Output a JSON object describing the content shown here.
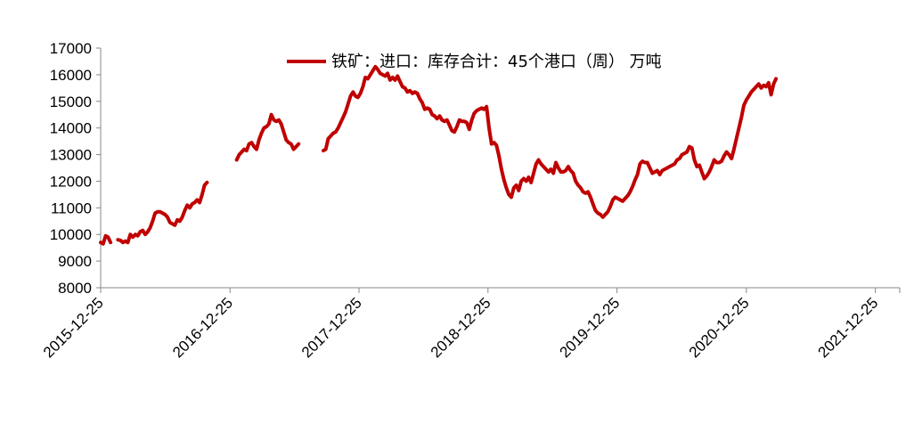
{
  "chart_data": {
    "type": "line",
    "title": "",
    "xlabel": "",
    "ylabel": "",
    "ylim": [
      8000,
      17000
    ],
    "y_ticks": [
      "8000",
      "9000",
      "10000",
      "11000",
      "12000",
      "13000",
      "14000",
      "15000",
      "16000",
      "17000"
    ],
    "x_ticks": [
      "2015-12-25",
      "2016-12-25",
      "2017-12-25",
      "2018-12-25",
      "2019-12-25",
      "2020-12-25",
      "2021-12-25"
    ],
    "x_range": [
      "2015-12-25",
      "2022-03-04"
    ],
    "grid": false,
    "legend_position": "top-center",
    "series": [
      {
        "name": "铁矿：进口：库存合计：45个港口（周） 万吨",
        "color": "#C00000",
        "points": [
          [
            "2015-12-25",
            9700
          ],
          [
            "2016-01-01",
            9650
          ],
          [
            "2016-01-08",
            9950
          ],
          [
            "2016-01-15",
            9900
          ],
          [
            "2016-01-22",
            9700
          ],
          [
            "2016-02-05",
            null
          ],
          [
            "2016-02-12",
            9800
          ],
          [
            "2016-02-19",
            9780
          ],
          [
            "2016-02-26",
            9700
          ],
          [
            "2016-03-04",
            9750
          ],
          [
            "2016-03-11",
            9700
          ],
          [
            "2016-03-18",
            10000
          ],
          [
            "2016-03-25",
            9900
          ],
          [
            "2016-04-01",
            10000
          ],
          [
            "2016-04-08",
            9950
          ],
          [
            "2016-04-15",
            10100
          ],
          [
            "2016-04-22",
            10150
          ],
          [
            "2016-04-29",
            10000
          ],
          [
            "2016-05-06",
            10100
          ],
          [
            "2016-05-13",
            10250
          ],
          [
            "2016-05-20",
            10500
          ],
          [
            "2016-05-27",
            10800
          ],
          [
            "2016-06-03",
            10850
          ],
          [
            "2016-06-10",
            10850
          ],
          [
            "2016-06-17",
            10800
          ],
          [
            "2016-06-24",
            10750
          ],
          [
            "2016-07-01",
            10650
          ],
          [
            "2016-07-08",
            10450
          ],
          [
            "2016-07-15",
            10400
          ],
          [
            "2016-07-22",
            10350
          ],
          [
            "2016-07-29",
            10550
          ],
          [
            "2016-08-05",
            10500
          ],
          [
            "2016-08-12",
            10650
          ],
          [
            "2016-08-19",
            10900
          ],
          [
            "2016-08-26",
            11100
          ],
          [
            "2016-09-02",
            11000
          ],
          [
            "2016-09-09",
            11150
          ],
          [
            "2016-09-16",
            11200
          ],
          [
            "2016-09-23",
            11300
          ],
          [
            "2016-09-30",
            11200
          ],
          [
            "2016-10-07",
            11500
          ],
          [
            "2016-10-14",
            11850
          ],
          [
            "2016-10-21",
            11950
          ],
          [
            "2016-11-18",
            null
          ],
          [
            "2017-01-13",
            12800
          ],
          [
            "2017-01-20",
            13000
          ],
          [
            "2017-01-27",
            13100
          ],
          [
            "2017-02-03",
            13200
          ],
          [
            "2017-02-10",
            13150
          ],
          [
            "2017-02-17",
            13400
          ],
          [
            "2017-02-24",
            13450
          ],
          [
            "2017-03-03",
            13300
          ],
          [
            "2017-03-10",
            13200
          ],
          [
            "2017-03-17",
            13550
          ],
          [
            "2017-03-24",
            13800
          ],
          [
            "2017-03-31",
            14000
          ],
          [
            "2017-04-07",
            14050
          ],
          [
            "2017-04-14",
            14150
          ],
          [
            "2017-04-21",
            14500
          ],
          [
            "2017-04-28",
            14300
          ],
          [
            "2017-05-05",
            14250
          ],
          [
            "2017-05-12",
            14300
          ],
          [
            "2017-05-19",
            14150
          ],
          [
            "2017-05-26",
            13850
          ],
          [
            "2017-06-02",
            13550
          ],
          [
            "2017-06-09",
            13450
          ],
          [
            "2017-06-16",
            13400
          ],
          [
            "2017-06-23",
            13200
          ],
          [
            "2017-06-30",
            13300
          ],
          [
            "2017-07-07",
            13400
          ],
          [
            "2017-07-14",
            null
          ],
          [
            "2017-09-15",
            13150
          ],
          [
            "2017-09-22",
            13200
          ],
          [
            "2017-09-29",
            13600
          ],
          [
            "2017-10-06",
            13700
          ],
          [
            "2017-10-13",
            13800
          ],
          [
            "2017-10-20",
            13850
          ],
          [
            "2017-10-27",
            14000
          ],
          [
            "2017-11-03",
            14200
          ],
          [
            "2017-11-10",
            14400
          ],
          [
            "2017-11-17",
            14600
          ],
          [
            "2017-11-24",
            14900
          ],
          [
            "2017-12-01",
            15200
          ],
          [
            "2017-12-08",
            15350
          ],
          [
            "2017-12-15",
            15200
          ],
          [
            "2017-12-22",
            15150
          ],
          [
            "2017-12-29",
            15300
          ],
          [
            "2018-01-05",
            15550
          ],
          [
            "2018-01-12",
            15900
          ],
          [
            "2018-01-19",
            15850
          ],
          [
            "2018-01-26",
            16000
          ],
          [
            "2018-02-02",
            16150
          ],
          [
            "2018-02-09",
            16300
          ],
          [
            "2018-02-16",
            16200
          ],
          [
            "2018-02-23",
            16050
          ],
          [
            "2018-03-02",
            16000
          ],
          [
            "2018-03-09",
            15950
          ],
          [
            "2018-03-16",
            16050
          ],
          [
            "2018-03-23",
            15800
          ],
          [
            "2018-03-30",
            15900
          ],
          [
            "2018-04-06",
            15800
          ],
          [
            "2018-04-13",
            15950
          ],
          [
            "2018-04-20",
            15750
          ],
          [
            "2018-04-27",
            15550
          ],
          [
            "2018-05-04",
            15500
          ],
          [
            "2018-05-11",
            15350
          ],
          [
            "2018-05-18",
            15400
          ],
          [
            "2018-05-25",
            15300
          ],
          [
            "2018-06-01",
            15350
          ],
          [
            "2018-06-08",
            15300
          ],
          [
            "2018-06-15",
            15100
          ],
          [
            "2018-06-22",
            14950
          ],
          [
            "2018-06-29",
            14700
          ],
          [
            "2018-07-06",
            14750
          ],
          [
            "2018-07-13",
            14700
          ],
          [
            "2018-07-20",
            14500
          ],
          [
            "2018-07-27",
            14450
          ],
          [
            "2018-08-03",
            14350
          ],
          [
            "2018-08-10",
            14450
          ],
          [
            "2018-08-17",
            14300
          ],
          [
            "2018-08-24",
            14250
          ],
          [
            "2018-08-31",
            14300
          ],
          [
            "2018-09-07",
            14100
          ],
          [
            "2018-09-14",
            13900
          ],
          [
            "2018-09-21",
            13850
          ],
          [
            "2018-09-28",
            14050
          ],
          [
            "2018-10-05",
            14300
          ],
          [
            "2018-10-12",
            14250
          ],
          [
            "2018-10-19",
            14250
          ],
          [
            "2018-10-26",
            14200
          ],
          [
            "2018-11-02",
            13950
          ],
          [
            "2018-11-09",
            14300
          ],
          [
            "2018-11-16",
            14550
          ],
          [
            "2018-11-23",
            14650
          ],
          [
            "2018-11-30",
            14700
          ],
          [
            "2018-12-07",
            14750
          ],
          [
            "2018-12-14",
            14700
          ],
          [
            "2018-12-21",
            14800
          ],
          [
            "2018-12-28",
            14000
          ],
          [
            "2019-01-04",
            13400
          ],
          [
            "2019-01-11",
            13450
          ],
          [
            "2019-01-18",
            13350
          ],
          [
            "2019-01-25",
            12950
          ],
          [
            "2019-02-01",
            12450
          ],
          [
            "2019-02-08",
            12050
          ],
          [
            "2019-02-15",
            11750
          ],
          [
            "2019-02-22",
            11500
          ],
          [
            "2019-03-01",
            11400
          ],
          [
            "2019-03-08",
            11750
          ],
          [
            "2019-03-15",
            11850
          ],
          [
            "2019-03-22",
            11650
          ],
          [
            "2019-03-29",
            12000
          ],
          [
            "2019-04-05",
            12100
          ],
          [
            "2019-04-12",
            12000
          ],
          [
            "2019-04-19",
            12150
          ],
          [
            "2019-04-26",
            11950
          ],
          [
            "2019-05-03",
            12300
          ],
          [
            "2019-05-10",
            12650
          ],
          [
            "2019-05-17",
            12800
          ],
          [
            "2019-05-24",
            12650
          ],
          [
            "2019-05-31",
            12550
          ],
          [
            "2019-06-07",
            12450
          ],
          [
            "2019-06-14",
            12350
          ],
          [
            "2019-06-21",
            12450
          ],
          [
            "2019-06-28",
            12300
          ],
          [
            "2019-07-05",
            12700
          ],
          [
            "2019-07-12",
            12500
          ],
          [
            "2019-07-19",
            12350
          ],
          [
            "2019-07-26",
            12350
          ],
          [
            "2019-08-02",
            12400
          ],
          [
            "2019-08-09",
            12550
          ],
          [
            "2019-08-16",
            12400
          ],
          [
            "2019-08-23",
            12300
          ],
          [
            "2019-08-30",
            12000
          ],
          [
            "2019-09-06",
            11850
          ],
          [
            "2019-09-13",
            11750
          ],
          [
            "2019-09-20",
            11600
          ],
          [
            "2019-09-27",
            11550
          ],
          [
            "2019-10-04",
            11600
          ],
          [
            "2019-10-11",
            11400
          ],
          [
            "2019-10-18",
            11150
          ],
          [
            "2019-10-25",
            10900
          ],
          [
            "2019-11-01",
            10800
          ],
          [
            "2019-11-08",
            10750
          ],
          [
            "2019-11-15",
            10650
          ],
          [
            "2019-11-22",
            10750
          ],
          [
            "2019-11-29",
            10850
          ],
          [
            "2019-12-06",
            11050
          ],
          [
            "2019-12-13",
            11300
          ],
          [
            "2019-12-20",
            11400
          ],
          [
            "2019-12-27",
            11350
          ],
          [
            "2020-01-03",
            11300
          ],
          [
            "2020-01-10",
            11250
          ],
          [
            "2020-01-17",
            11350
          ],
          [
            "2020-01-24",
            11450
          ],
          [
            "2020-01-31",
            11600
          ],
          [
            "2020-02-07",
            11800
          ],
          [
            "2020-02-14",
            12050
          ],
          [
            "2020-02-21",
            12250
          ],
          [
            "2020-02-28",
            12650
          ],
          [
            "2020-03-06",
            12750
          ],
          [
            "2020-03-13",
            12700
          ],
          [
            "2020-03-20",
            12700
          ],
          [
            "2020-03-27",
            12500
          ],
          [
            "2020-04-03",
            12300
          ],
          [
            "2020-04-10",
            12350
          ],
          [
            "2020-04-17",
            12400
          ],
          [
            "2020-04-24",
            12250
          ],
          [
            "2020-05-01",
            12400
          ],
          [
            "2020-05-08",
            12450
          ],
          [
            "2020-05-15",
            12500
          ],
          [
            "2020-05-22",
            12550
          ],
          [
            "2020-05-29",
            12600
          ],
          [
            "2020-06-05",
            12650
          ],
          [
            "2020-06-12",
            12800
          ],
          [
            "2020-06-19",
            12850
          ],
          [
            "2020-06-26",
            13000
          ],
          [
            "2020-07-03",
            13050
          ],
          [
            "2020-07-10",
            13100
          ],
          [
            "2020-07-17",
            13300
          ],
          [
            "2020-07-24",
            13250
          ],
          [
            "2020-07-31",
            12800
          ],
          [
            "2020-08-07",
            12550
          ],
          [
            "2020-08-14",
            12600
          ],
          [
            "2020-08-21",
            12350
          ],
          [
            "2020-08-28",
            12100
          ],
          [
            "2020-09-04",
            12200
          ],
          [
            "2020-09-11",
            12350
          ],
          [
            "2020-09-18",
            12550
          ],
          [
            "2020-09-25",
            12800
          ],
          [
            "2020-10-02",
            12700
          ],
          [
            "2020-10-09",
            12700
          ],
          [
            "2020-10-16",
            12750
          ],
          [
            "2020-10-23",
            12950
          ],
          [
            "2020-10-30",
            13100
          ],
          [
            "2020-11-06",
            13000
          ],
          [
            "2020-11-13",
            12850
          ],
          [
            "2020-11-20",
            13200
          ],
          [
            "2020-11-27",
            13600
          ],
          [
            "2020-12-04",
            14000
          ],
          [
            "2020-12-11",
            14400
          ],
          [
            "2020-12-18",
            14850
          ],
          [
            "2020-12-25",
            15050
          ],
          [
            "2021-01-01",
            15200
          ],
          [
            "2021-01-08",
            15350
          ],
          [
            "2021-01-15",
            15450
          ],
          [
            "2021-01-22",
            15550
          ],
          [
            "2021-01-29",
            15650
          ],
          [
            "2021-02-05",
            15500
          ],
          [
            "2021-02-12",
            15600
          ],
          [
            "2021-02-19",
            15550
          ],
          [
            "2021-02-26",
            15700
          ],
          [
            "2021-03-05",
            15250
          ],
          [
            "2021-03-12",
            15650
          ],
          [
            "2021-03-19",
            15850
          ]
        ]
      }
    ]
  }
}
